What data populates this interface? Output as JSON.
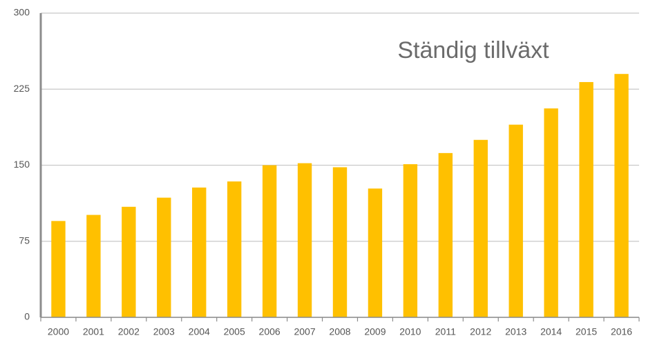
{
  "chart_data": {
    "type": "bar",
    "title": "Ständig tillväxt",
    "categories": [
      "2000",
      "2001",
      "2002",
      "2003",
      "2004",
      "2005",
      "2006",
      "2007",
      "2008",
      "2009",
      "2010",
      "2011",
      "2012",
      "2013",
      "2014",
      "2015",
      "2016"
    ],
    "values": [
      95,
      101,
      109,
      118,
      128,
      134,
      150,
      152,
      148,
      127,
      151,
      162,
      175,
      190,
      206,
      232,
      240
    ],
    "color": "#ffc000",
    "ylim": [
      0,
      300
    ],
    "yticks": [
      0,
      75,
      150,
      225,
      300
    ],
    "grid": true
  }
}
